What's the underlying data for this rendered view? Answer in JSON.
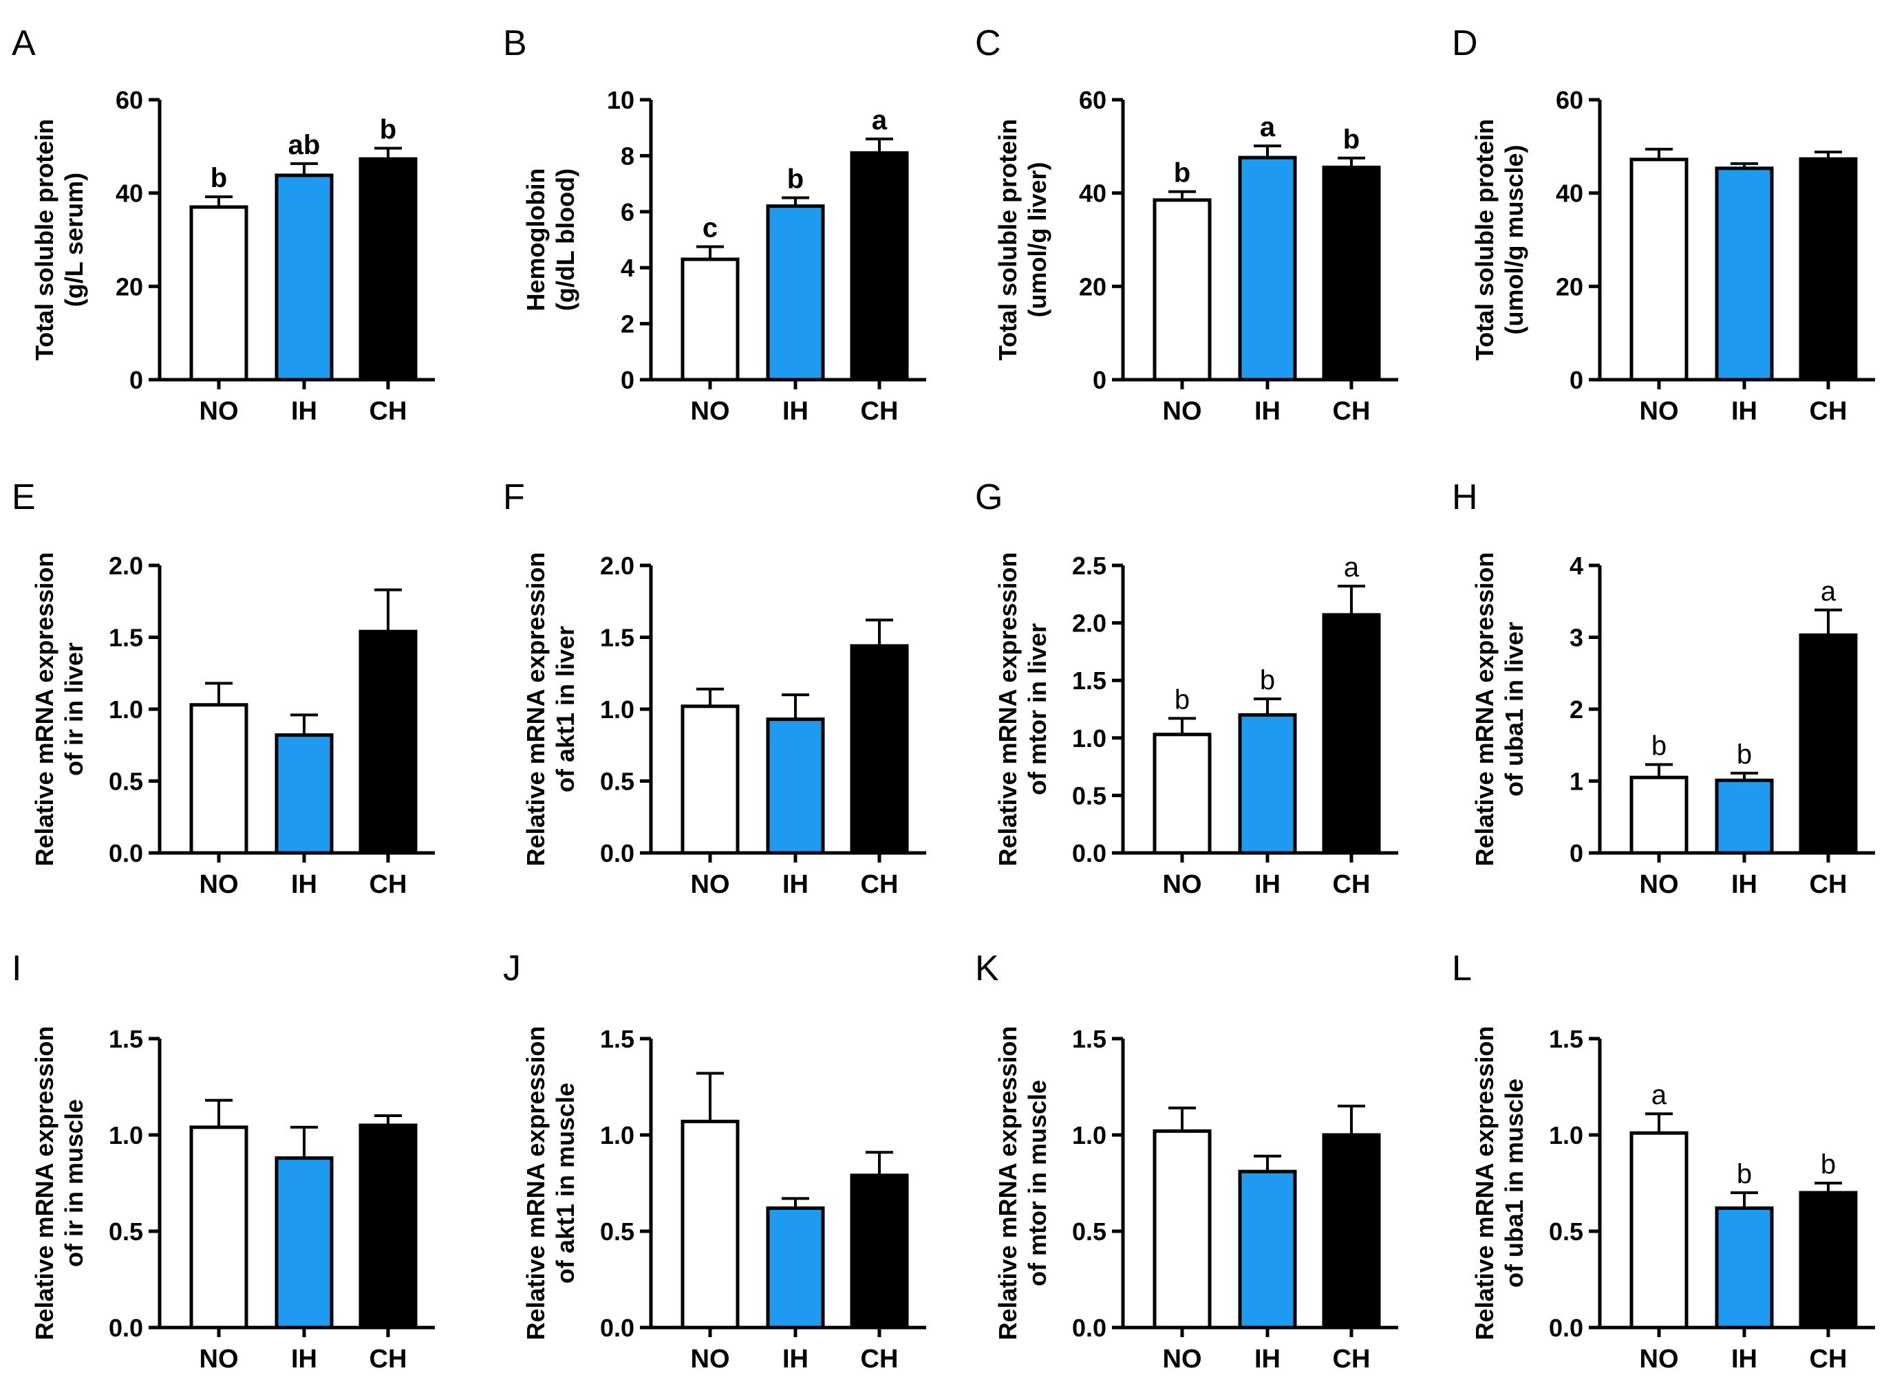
{
  "colors": {
    "NO": "#ffffff",
    "IH": "#1e9bf0",
    "CH": "#000000",
    "stroke": "#000000"
  },
  "chart_data": [
    {
      "panel": "A",
      "type": "bar",
      "categories": [
        "NO",
        "IH",
        "CH"
      ],
      "values": [
        37,
        43.8,
        47.3
      ],
      "errors": [
        2.2,
        2.5,
        2.3
      ],
      "sig": [
        "b",
        "ab",
        "b"
      ],
      "sig_bold": true,
      "ylabel": [
        "Total soluble protein",
        "(g/L serum)"
      ],
      "ylim": [
        0,
        60
      ],
      "yticks": [
        0,
        20,
        40,
        60
      ],
      "ytick_labels": [
        "0",
        "20",
        "40",
        "60"
      ]
    },
    {
      "panel": "B",
      "type": "bar",
      "categories": [
        "NO",
        "IH",
        "CH"
      ],
      "values": [
        4.3,
        6.2,
        8.1
      ],
      "errors": [
        0.45,
        0.3,
        0.5
      ],
      "sig": [
        "c",
        "b",
        "a"
      ],
      "sig_bold": true,
      "ylabel": [
        "Hemoglobin",
        "(g/dL blood)"
      ],
      "ylim": [
        0,
        10
      ],
      "yticks": [
        0,
        2,
        4,
        6,
        8,
        10
      ],
      "ytick_labels": [
        "0",
        "2",
        "4",
        "6",
        "8",
        "10"
      ]
    },
    {
      "panel": "C",
      "type": "bar",
      "categories": [
        "NO",
        "IH",
        "CH"
      ],
      "values": [
        38.5,
        47.6,
        45.5
      ],
      "errors": [
        1.8,
        2.5,
        2.0
      ],
      "sig": [
        "b",
        "a",
        "b"
      ],
      "sig_bold": true,
      "ylabel": [
        "Total soluble protein",
        "(umol/g liver)"
      ],
      "ylim": [
        0,
        60
      ],
      "yticks": [
        0,
        20,
        40,
        60
      ],
      "ytick_labels": [
        "0",
        "20",
        "40",
        "60"
      ]
    },
    {
      "panel": "D",
      "type": "bar",
      "categories": [
        "NO",
        "IH",
        "CH"
      ],
      "values": [
        47.2,
        45.3,
        47.3
      ],
      "errors": [
        2.2,
        1.0,
        1.5
      ],
      "sig": [
        "",
        "",
        ""
      ],
      "sig_bold": true,
      "ylabel": [
        "Total soluble protein",
        "(umol/g muscle)"
      ],
      "ylim": [
        0,
        60
      ],
      "yticks": [
        0,
        20,
        40,
        60
      ],
      "ytick_labels": [
        "0",
        "20",
        "40",
        "60"
      ]
    },
    {
      "panel": "E",
      "type": "bar",
      "categories": [
        "NO",
        "IH",
        "CH"
      ],
      "values": [
        1.03,
        0.82,
        1.54
      ],
      "errors": [
        0.15,
        0.14,
        0.29
      ],
      "sig": [
        "",
        "",
        ""
      ],
      "sig_bold": false,
      "ylabel": [
        "Relative mRNA expression",
        "of ir in liver"
      ],
      "ylim": [
        0,
        2.0
      ],
      "yticks": [
        0,
        0.5,
        1.0,
        1.5,
        2.0
      ],
      "ytick_labels": [
        "0.0",
        "0.5",
        "1.0",
        "1.5",
        "2.0"
      ]
    },
    {
      "panel": "F",
      "type": "bar",
      "categories": [
        "NO",
        "IH",
        "CH"
      ],
      "values": [
        1.02,
        0.93,
        1.44
      ],
      "errors": [
        0.12,
        0.17,
        0.18
      ],
      "sig": [
        "",
        "",
        ""
      ],
      "sig_bold": false,
      "ylabel": [
        "Relative mRNA expression",
        "of akt1 in liver"
      ],
      "ylim": [
        0,
        2.0
      ],
      "yticks": [
        0,
        0.5,
        1.0,
        1.5,
        2.0
      ],
      "ytick_labels": [
        "0.0",
        "0.5",
        "1.0",
        "1.5",
        "2.0"
      ]
    },
    {
      "panel": "G",
      "type": "bar",
      "categories": [
        "NO",
        "IH",
        "CH"
      ],
      "values": [
        1.03,
        1.2,
        2.07
      ],
      "errors": [
        0.14,
        0.14,
        0.25
      ],
      "sig": [
        "b",
        "b",
        "a"
      ],
      "sig_bold": false,
      "ylabel": [
        "Relative mRNA expression",
        "of mtor in liver"
      ],
      "ylim": [
        0,
        2.5
      ],
      "yticks": [
        0,
        0.5,
        1.0,
        1.5,
        2.0,
        2.5
      ],
      "ytick_labels": [
        "0.0",
        "0.5",
        "1.0",
        "1.5",
        "2.0",
        "2.5"
      ]
    },
    {
      "panel": "H",
      "type": "bar",
      "categories": [
        "NO",
        "IH",
        "CH"
      ],
      "values": [
        1.05,
        1.01,
        3.03
      ],
      "errors": [
        0.18,
        0.1,
        0.35
      ],
      "sig": [
        "b",
        "b",
        "a"
      ],
      "sig_bold": false,
      "ylabel": [
        "Relative mRNA expression",
        "of uba1 in liver"
      ],
      "ylim": [
        0,
        4
      ],
      "yticks": [
        0,
        1,
        2,
        3,
        4
      ],
      "ytick_labels": [
        "0",
        "1",
        "2",
        "3",
        "4"
      ]
    },
    {
      "panel": "I",
      "type": "bar",
      "categories": [
        "NO",
        "IH",
        "CH"
      ],
      "values": [
        1.04,
        0.88,
        1.05
      ],
      "errors": [
        0.14,
        0.16,
        0.05
      ],
      "sig": [
        "",
        "",
        ""
      ],
      "sig_bold": false,
      "ylabel": [
        "Relative mRNA expression",
        "of ir in muscle"
      ],
      "ylim": [
        0,
        1.5
      ],
      "yticks": [
        0,
        0.5,
        1.0,
        1.5
      ],
      "ytick_labels": [
        "0.0",
        "0.5",
        "1.0",
        "1.5"
      ]
    },
    {
      "panel": "J",
      "type": "bar",
      "categories": [
        "NO",
        "IH",
        "CH"
      ],
      "values": [
        1.07,
        0.62,
        0.79
      ],
      "errors": [
        0.25,
        0.05,
        0.12
      ],
      "sig": [
        "",
        "",
        ""
      ],
      "sig_bold": false,
      "ylabel": [
        "Relative mRNA expression",
        "of akt1 in muscle"
      ],
      "ylim": [
        0,
        1.5
      ],
      "yticks": [
        0,
        0.5,
        1.0,
        1.5
      ],
      "ytick_labels": [
        "0.0",
        "0.5",
        "1.0",
        "1.5"
      ]
    },
    {
      "panel": "K",
      "type": "bar",
      "categories": [
        "NO",
        "IH",
        "CH"
      ],
      "values": [
        1.02,
        0.81,
        1.0
      ],
      "errors": [
        0.12,
        0.08,
        0.15
      ],
      "sig": [
        "",
        "",
        ""
      ],
      "sig_bold": false,
      "ylabel": [
        "Relative mRNA expression",
        "of mtor in muscle"
      ],
      "ylim": [
        0,
        1.5
      ],
      "yticks": [
        0,
        0.5,
        1.0,
        1.5
      ],
      "ytick_labels": [
        "0.0",
        "0.5",
        "1.0",
        "1.5"
      ]
    },
    {
      "panel": "L",
      "type": "bar",
      "categories": [
        "NO",
        "IH",
        "CH"
      ],
      "values": [
        1.01,
        0.62,
        0.7
      ],
      "errors": [
        0.1,
        0.08,
        0.05
      ],
      "sig": [
        "a",
        "b",
        "b"
      ],
      "sig_bold": false,
      "ylabel": [
        "Relative mRNA expression",
        "of uba1 in muscle"
      ],
      "ylim": [
        0,
        1.5
      ],
      "yticks": [
        0,
        0.5,
        1.0,
        1.5
      ],
      "ytick_labels": [
        "0.0",
        "0.5",
        "1.0",
        "1.5"
      ]
    }
  ]
}
